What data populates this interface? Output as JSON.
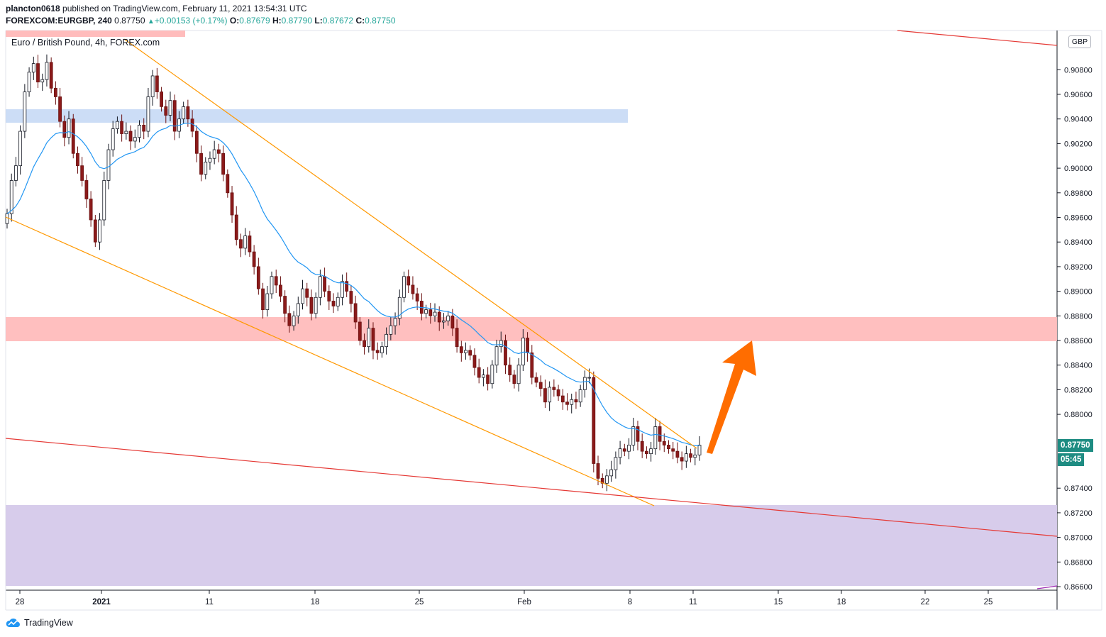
{
  "header": {
    "author": "plancton0618",
    "published_text": "published on TradingView.com, February 11, 2021 13:54:31 UTC",
    "symbol": "FOREXCOM:EURGBP, 240",
    "last": "0.87750",
    "change": "+0.00153 (+0.17%)",
    "o_label": "O:",
    "o_val": "0.87679",
    "h_label": "H:",
    "h_val": "0.87790",
    "l_label": "L:",
    "l_val": "0.87672",
    "c_label": "C:",
    "c_val": "0.87750"
  },
  "legend": "Euro / British Pound, 4h, FOREX.com",
  "currency": "GBP",
  "price_tag": "0.87750",
  "countdown_tag": "05:45",
  "branding": "TradingView",
  "colors": {
    "up": "#26a69a",
    "down": "#8b1a1a",
    "ema": "#2196f3",
    "wedge": "#ff9800",
    "trend": "#e53935",
    "zone_blue": "#c3d7f5",
    "zone_red": "#ffbcbc",
    "zone_purple": "#d5c9ea",
    "arrow": "#ff6d00"
  },
  "chart_data": {
    "type": "candlestick",
    "title": "Euro / British Pound, 4h, FOREX.com",
    "y_ticks": [
      "0.90800",
      "0.90600",
      "0.90400",
      "0.90200",
      "0.90000",
      "0.89800",
      "0.89600",
      "0.89400",
      "0.89200",
      "0.89000",
      "0.88800",
      "0.88600",
      "0.88400",
      "0.88200",
      "0.88000",
      "0.87400",
      "0.87200",
      "0.87000",
      "0.86800",
      "0.86600"
    ],
    "x_ticks": [
      "28",
      "2021",
      "11",
      "18",
      "25",
      "Feb",
      "8",
      "11",
      "15",
      "18",
      "22",
      "25"
    ],
    "ylim": [
      0.8657,
      0.9109
    ],
    "close_series": [
      0.8963,
      0.899,
      0.9002,
      0.903,
      0.9062,
      0.9078,
      0.9085,
      0.907,
      0.9072,
      0.9086,
      0.9065,
      0.9058,
      0.9038,
      0.9025,
      0.904,
      0.9012,
      0.9002,
      0.899,
      0.8975,
      0.8958,
      0.894,
      0.8958,
      0.899,
      0.9015,
      0.9032,
      0.9038,
      0.9028,
      0.903,
      0.9022,
      0.9025,
      0.9035,
      0.903,
      0.9058,
      0.9075,
      0.9062,
      0.905,
      0.9043,
      0.9055,
      0.903,
      0.904,
      0.905,
      0.904,
      0.903,
      0.9012,
      0.8995,
      0.9005,
      0.9008,
      0.9015,
      0.9012,
      0.8995,
      0.898,
      0.8962,
      0.8942,
      0.8935,
      0.8945,
      0.8932,
      0.892,
      0.8902,
      0.8885,
      0.8898,
      0.8912,
      0.8905,
      0.8896,
      0.8882,
      0.8872,
      0.888,
      0.889,
      0.8902,
      0.8895,
      0.8882,
      0.8895,
      0.8912,
      0.89,
      0.8892,
      0.8888,
      0.8895,
      0.8908,
      0.89,
      0.889,
      0.8875,
      0.886,
      0.8855,
      0.887,
      0.8852,
      0.885,
      0.8855,
      0.8865,
      0.8872,
      0.8878,
      0.8895,
      0.8912,
      0.8905,
      0.8898,
      0.8892,
      0.8882,
      0.8885,
      0.888,
      0.8883,
      0.8875,
      0.8876,
      0.888,
      0.887,
      0.8855,
      0.885,
      0.8852,
      0.8848,
      0.8838,
      0.883,
      0.8832,
      0.8825,
      0.884,
      0.8855,
      0.886,
      0.884,
      0.8832,
      0.8825,
      0.884,
      0.8862,
      0.885,
      0.883,
      0.8826,
      0.8821,
      0.881,
      0.8822,
      0.882,
      0.8815,
      0.881,
      0.8808,
      0.8812,
      0.881,
      0.882,
      0.883,
      0.883,
      0.876,
      0.8748,
      0.8744,
      0.875,
      0.8755,
      0.8765,
      0.8772,
      0.877,
      0.8775,
      0.879,
      0.8778,
      0.877,
      0.8768,
      0.8772,
      0.879,
      0.8778,
      0.8775,
      0.8772,
      0.877,
      0.8765,
      0.8762,
      0.8768,
      0.8765,
      0.8767,
      0.8775
    ],
    "ema_label": "",
    "zones": [
      {
        "color": "blue",
        "from": 0.9037,
        "to": 0.9048
      },
      {
        "color": "red",
        "from": 0.886,
        "to": 0.8878
      },
      {
        "color": "purple",
        "from": 0.8662,
        "to": 0.8727
      }
    ]
  }
}
